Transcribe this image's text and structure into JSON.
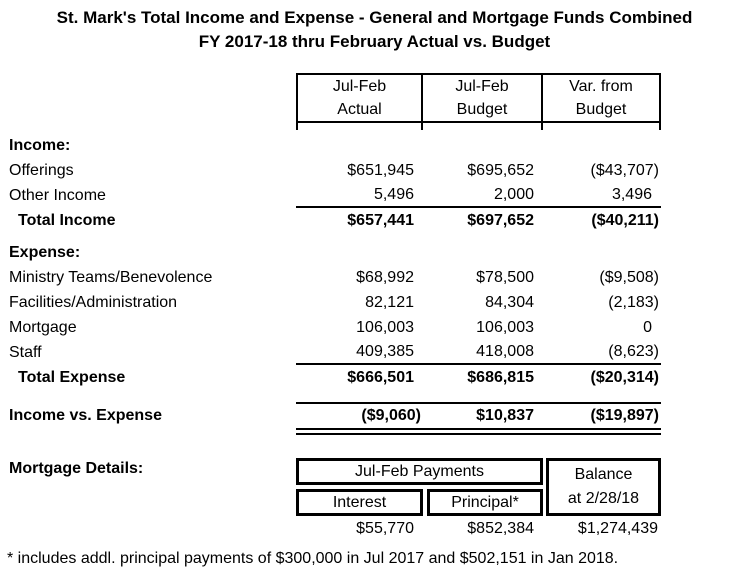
{
  "title": {
    "line1": "St. Mark's Total Income and Expense - General and Mortgage Funds Combined",
    "line2": "FY 2017-18 thru February Actual vs. Budget"
  },
  "columns": [
    {
      "line1": "Jul-Feb",
      "line2": "Actual"
    },
    {
      "line1": "Jul-Feb",
      "line2": "Budget"
    },
    {
      "line1": "Var. from",
      "line2": "Budget"
    }
  ],
  "income": {
    "header": "Income:",
    "rows": [
      {
        "label": "Offerings",
        "actual": "$651,945",
        "budget": "$695,652",
        "variance": "($43,707)"
      },
      {
        "label": "Other Income",
        "actual": "5,496",
        "budget": "2,000",
        "variance": "3,496"
      }
    ],
    "total": {
      "label": "Total Income",
      "actual": "$657,441",
      "budget": "$697,652",
      "variance": "($40,211)"
    }
  },
  "expense": {
    "header": "Expense:",
    "rows": [
      {
        "label": "Ministry Teams/Benevolence",
        "actual": "$68,992",
        "budget": "$78,500",
        "variance": "($9,508)"
      },
      {
        "label": "Facilities/Administration",
        "actual": "82,121",
        "budget": "84,304",
        "variance": "(2,183)"
      },
      {
        "label": "Mortgage",
        "actual": "106,003",
        "budget": "106,003",
        "variance": "0"
      },
      {
        "label": "Staff",
        "actual": "409,385",
        "budget": "418,008",
        "variance": "(8,623)"
      }
    ],
    "total": {
      "label": "Total Expense",
      "actual": "$666,501",
      "budget": "$686,815",
      "variance": "($20,314)"
    }
  },
  "net": {
    "label": "Income vs. Expense",
    "actual": "($9,060)",
    "budget": "$10,837",
    "variance": "($19,897)"
  },
  "mortgage": {
    "label": "Mortgage Details:",
    "payments_header": "Jul-Feb Payments",
    "interest_header": "Interest",
    "principal_header": "Principal*",
    "balance_header_line1": "Balance",
    "balance_header_line2": "at 2/28/18",
    "interest": "$55,770",
    "principal": "$852,384",
    "balance": "$1,274,439"
  },
  "footnote": "* includes addl. principal payments of $300,000 in Jul 2017 and $502,151 in Jan 2018.",
  "colors": {
    "text": "#000000",
    "background": "#ffffff",
    "border": "#000000"
  }
}
